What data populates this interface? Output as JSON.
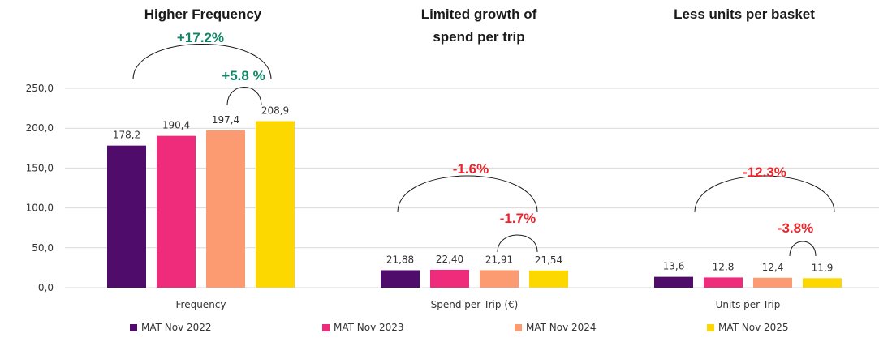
{
  "colors": {
    "series": [
      "#4f0c6b",
      "#ef2b7c",
      "#fc9a72",
      "#fdd800"
    ],
    "increase": "#138566",
    "decrease": "#e8262b",
    "grid": "#d9d9d9",
    "axis_text": "#333333"
  },
  "titles": {
    "frequency": "Higher Frequency",
    "spend": "Limited growth of\nspend per trip",
    "units": "Less units per basket"
  },
  "changes": {
    "frequency_total": "+17.2%",
    "frequency_yoy": "+5.8 %",
    "spend_total": "-1.6%",
    "spend_yoy": "-1.7%",
    "units_total": "-12.3%",
    "units_yoy": "-3.8%"
  },
  "chart_data": {
    "type": "bar",
    "categories": [
      "Frequency",
      "Spend per Trip (€)",
      "Units per Trip"
    ],
    "ylim": [
      0,
      250
    ],
    "yticks": [
      "0,0",
      "50,0",
      "100,0",
      "150,0",
      "200,0",
      "250,0"
    ],
    "grid": true,
    "legend_position": "bottom",
    "series": [
      {
        "name": "MAT Nov 2022",
        "values": [
          178.2,
          21.88,
          13.6
        ],
        "labels": [
          "178,2",
          "21,88",
          "13,6"
        ]
      },
      {
        "name": "MAT Nov 2023",
        "values": [
          190.4,
          22.4,
          12.8
        ],
        "labels": [
          "190,4",
          "22,40",
          "12,8"
        ]
      },
      {
        "name": "MAT Nov 2024",
        "values": [
          197.4,
          21.91,
          12.4
        ],
        "labels": [
          "197,4",
          "21,91",
          "12,4"
        ]
      },
      {
        "name": "MAT Nov 2025",
        "values": [
          208.9,
          21.54,
          11.9
        ],
        "labels": [
          "208,9",
          "21,54",
          "11,9"
        ]
      }
    ]
  }
}
